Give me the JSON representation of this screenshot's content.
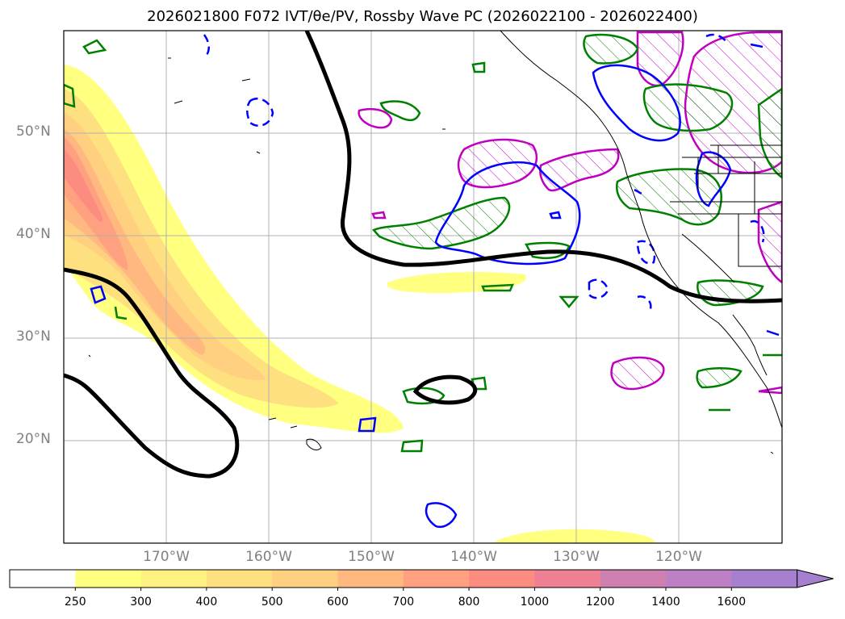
{
  "title": "2026021800 F072 IVT/θe/PV, Rossby Wave PC (2026022100 - 2026022400)",
  "latitude_labels": [
    "50°N",
    "40°N",
    "30°N",
    "20°N"
  ],
  "longitude_labels": [
    "170°W",
    "160°W",
    "150°W",
    "140°W",
    "130°W",
    "120°W"
  ],
  "colorbar": {
    "ticks": [
      "250",
      "300",
      "400",
      "500",
      "600",
      "700",
      "800",
      "1000",
      "1200",
      "1400",
      "1600"
    ],
    "colors": [
      "#ffffff",
      "#ffff80",
      "#fff280",
      "#ffe080",
      "#ffd080",
      "#ffb880",
      "#ffa080",
      "#fd8c80",
      "#ef8094",
      "#d080b0",
      "#bd80c4",
      "#a67fce"
    ],
    "extend": "max"
  },
  "legend_colors": {
    "ivt_fill": "#ffd580",
    "contour_black": "#000000",
    "contour_blue": "#0000ff",
    "contour_green": "#008000",
    "contour_magenta": "#c000c0",
    "coastline": "#000000",
    "grid": "#b0b0b0"
  }
}
